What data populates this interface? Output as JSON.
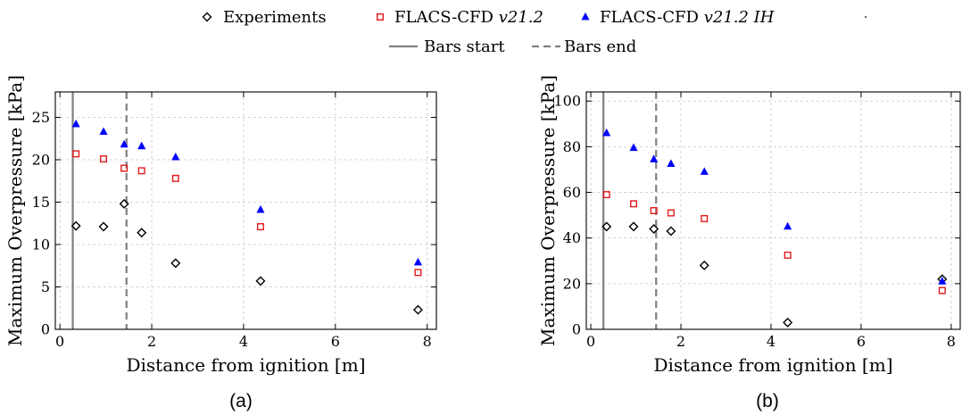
{
  "legend": {
    "items": [
      {
        "label": "Experiments",
        "label_italic": "",
        "marker": "diamond",
        "color": "#000000"
      },
      {
        "label": "FLACS-CFD ",
        "label_italic": "v21.2",
        "marker": "square",
        "color": "#e41a1c"
      },
      {
        "label": "FLACS-CFD ",
        "label_italic": "v21.2 IH",
        "marker": "triangle",
        "color": "#0000ff"
      },
      {
        "label": "Bars start",
        "label_italic": "",
        "marker": "solid-line",
        "color": "#808080"
      },
      {
        "label": "Bars end",
        "label_italic": "",
        "marker": "dashed-line",
        "color": "#808080"
      }
    ]
  },
  "chart_data": [
    {
      "type": "scatter",
      "panel_label": "(a)",
      "xlabel": "Distance from ignition [m]",
      "ylabel": "Maximum Overpressure [kPa]",
      "xlim": [
        -0.1,
        8.2
      ],
      "ylim": [
        0,
        28
      ],
      "xticks": [
        0,
        2,
        4,
        6,
        8
      ],
      "yticks": [
        0,
        5,
        10,
        15,
        20,
        25
      ],
      "grid": true,
      "bars_start": 0.28,
      "bars_end": 1.45,
      "series": [
        {
          "name": "Experiments",
          "marker": "diamond",
          "color": "#000000",
          "x": [
            0.35,
            0.95,
            1.4,
            1.78,
            2.52,
            4.37,
            7.8
          ],
          "y": [
            12.2,
            12.1,
            14.8,
            11.4,
            7.8,
            5.7,
            2.3
          ]
        },
        {
          "name": "FLACS-CFD v21.2",
          "marker": "square",
          "color": "#e41a1c",
          "x": [
            0.35,
            0.95,
            1.4,
            1.78,
            2.52,
            4.37,
            7.8
          ],
          "y": [
            20.7,
            20.1,
            19.0,
            18.7,
            17.8,
            12.1,
            6.7
          ]
        },
        {
          "name": "FLACS-CFD v21.2 IH",
          "marker": "triangle",
          "color": "#0000ff",
          "x": [
            0.35,
            0.95,
            1.4,
            1.78,
            2.52,
            4.37,
            7.8
          ],
          "y": [
            24.2,
            23.3,
            21.8,
            21.6,
            20.3,
            14.1,
            7.9
          ]
        }
      ]
    },
    {
      "type": "scatter",
      "panel_label": "(b)",
      "xlabel": "Distance from ignition [m]",
      "ylabel": "Maximum Overpressure [kPa]",
      "xlim": [
        -0.1,
        8.2
      ],
      "ylim": [
        0,
        104
      ],
      "xticks": [
        0,
        2,
        4,
        6,
        8
      ],
      "yticks": [
        0,
        20,
        40,
        60,
        80,
        100
      ],
      "grid": true,
      "bars_start": 0.28,
      "bars_end": 1.45,
      "series": [
        {
          "name": "Experiments",
          "marker": "diamond",
          "color": "#000000",
          "x": [
            0.35,
            0.95,
            1.4,
            1.78,
            2.52,
            4.37,
            7.8
          ],
          "y": [
            45,
            45,
            44,
            43,
            28,
            3,
            22
          ]
        },
        {
          "name": "FLACS-CFD v21.2",
          "marker": "square",
          "color": "#e41a1c",
          "x": [
            0.35,
            0.95,
            1.4,
            1.78,
            2.52,
            4.37,
            7.8
          ],
          "y": [
            59,
            55,
            52,
            51,
            48.5,
            32.5,
            17
          ]
        },
        {
          "name": "FLACS-CFD v21.2 IH",
          "marker": "triangle",
          "color": "#0000ff",
          "x": [
            0.35,
            0.95,
            1.4,
            1.78,
            2.52,
            4.37,
            7.8
          ],
          "y": [
            86,
            79.5,
            74.5,
            72.5,
            69,
            45,
            21
          ]
        }
      ]
    }
  ]
}
